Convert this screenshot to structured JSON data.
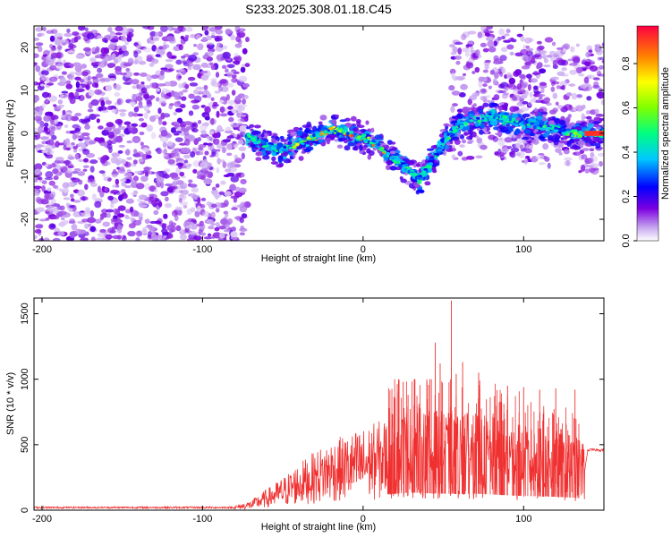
{
  "title": "S233.2025.308.01.18.C45",
  "chart_data": [
    {
      "type": "heatmap",
      "xlabel": "Height of straight line (km)",
      "ylabel": "Frequency (Hz)",
      "xlim": [
        -205,
        150
      ],
      "ylim": [
        -25,
        25
      ],
      "xticks": [
        -200,
        -100,
        0,
        100
      ],
      "yticks": [
        -20,
        -10,
        0,
        10,
        20
      ],
      "colorbar": {
        "label": "Normalized spectral amplitude",
        "range": [
          0,
          0.97
        ],
        "ticks": [
          "0.0",
          "0.2",
          "0.4",
          "0.6",
          "0.8"
        ],
        "tick_values": [
          0.0,
          0.2,
          0.4,
          0.6,
          0.8
        ],
        "colors": [
          "#ffffff",
          "#c8a8f0",
          "#7b00e0",
          "#0000ff",
          "#00c8ff",
          "#00ff80",
          "#80ff00",
          "#ffff00",
          "#ff8000",
          "#ff0040"
        ]
      },
      "ridge": {
        "x": [
          -70,
          -60,
          -50,
          -40,
          -30,
          -20,
          -10,
          0,
          10,
          20,
          30,
          35,
          40,
          45,
          50,
          55,
          60,
          70,
          80,
          90,
          100,
          110,
          120,
          130,
          140,
          150
        ],
        "y": [
          -1,
          -3,
          -4,
          -2,
          -1,
          1,
          0,
          -1,
          -3,
          -6,
          -9,
          -11,
          -8,
          -5,
          -2,
          0,
          2,
          3,
          4,
          3,
          2,
          2,
          1,
          0,
          0,
          0
        ]
      }
    },
    {
      "type": "line",
      "xlabel": "Height of straight line (km)",
      "ylabel": "SNR (10 * v/v)",
      "xlim": [
        -205,
        150
      ],
      "ylim": [
        0,
        1620
      ],
      "xticks": [
        -200,
        -100,
        0,
        100
      ],
      "yticks": [
        0,
        500,
        1000,
        1500
      ],
      "series_color": "#f03030",
      "envelope": {
        "x": [
          -205,
          -100,
          -80,
          -70,
          -60,
          -50,
          -40,
          -30,
          -20,
          -10,
          0,
          10,
          20,
          30,
          40,
          50,
          60,
          70,
          80,
          90,
          100,
          110,
          120,
          130,
          138,
          140,
          150
        ],
        "y": [
          20,
          20,
          20,
          40,
          90,
          140,
          200,
          250,
          300,
          320,
          350,
          380,
          420,
          450,
          430,
          420,
          410,
          420,
          400,
          380,
          360,
          350,
          340,
          320,
          300,
          460,
          460
        ]
      },
      "peaks": [
        {
          "x": 55,
          "y": 1600
        },
        {
          "x": 45,
          "y": 1280
        },
        {
          "x": 48,
          "y": 1120
        },
        {
          "x": 62,
          "y": 1130
        },
        {
          "x": 58,
          "y": 1040
        },
        {
          "x": 72,
          "y": 1050
        },
        {
          "x": 25,
          "y": 980
        },
        {
          "x": 28,
          "y": 880
        },
        {
          "x": 90,
          "y": 950
        },
        {
          "x": 100,
          "y": 940
        },
        {
          "x": 110,
          "y": 920
        },
        {
          "x": 120,
          "y": 930
        },
        {
          "x": 132,
          "y": 920
        }
      ]
    }
  ]
}
